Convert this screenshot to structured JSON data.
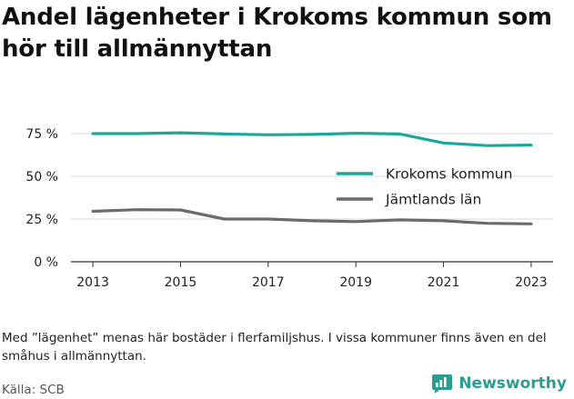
{
  "title": "Andel lägenheter i Krokoms kommun som hör till allmännyttan",
  "note": "Med ”lägenhet” menas här bostäder i flerfamiljshus. I vissa kommuner finns även en del småhus i allmännyttan.",
  "source": "Källa: SCB",
  "brand": "Newsworthy",
  "chart_data": {
    "type": "line",
    "x": [
      2013,
      2014,
      2015,
      2016,
      2017,
      2018,
      2019,
      2020,
      2021,
      2022,
      2023
    ],
    "x_tick_labels": [
      "2013",
      "2015",
      "2017",
      "2019",
      "2021",
      "2023"
    ],
    "y_tick_labels": [
      "0 %",
      "25 %",
      "50 %",
      "75 %"
    ],
    "ylim": [
      0,
      80
    ],
    "grid": true,
    "legend_position": "right",
    "series": [
      {
        "name": "Krokoms kommun",
        "color": "#1fa69a",
        "values": [
          75.0,
          75.0,
          75.5,
          74.8,
          74.3,
          74.5,
          75.2,
          74.8,
          69.5,
          68.0,
          68.3
        ]
      },
      {
        "name": "Jämtlands län",
        "color": "#6b6b6b",
        "values": [
          29.5,
          30.5,
          30.3,
          25.0,
          25.0,
          24.0,
          23.5,
          24.5,
          24.0,
          22.5,
          22.2
        ]
      }
    ]
  }
}
